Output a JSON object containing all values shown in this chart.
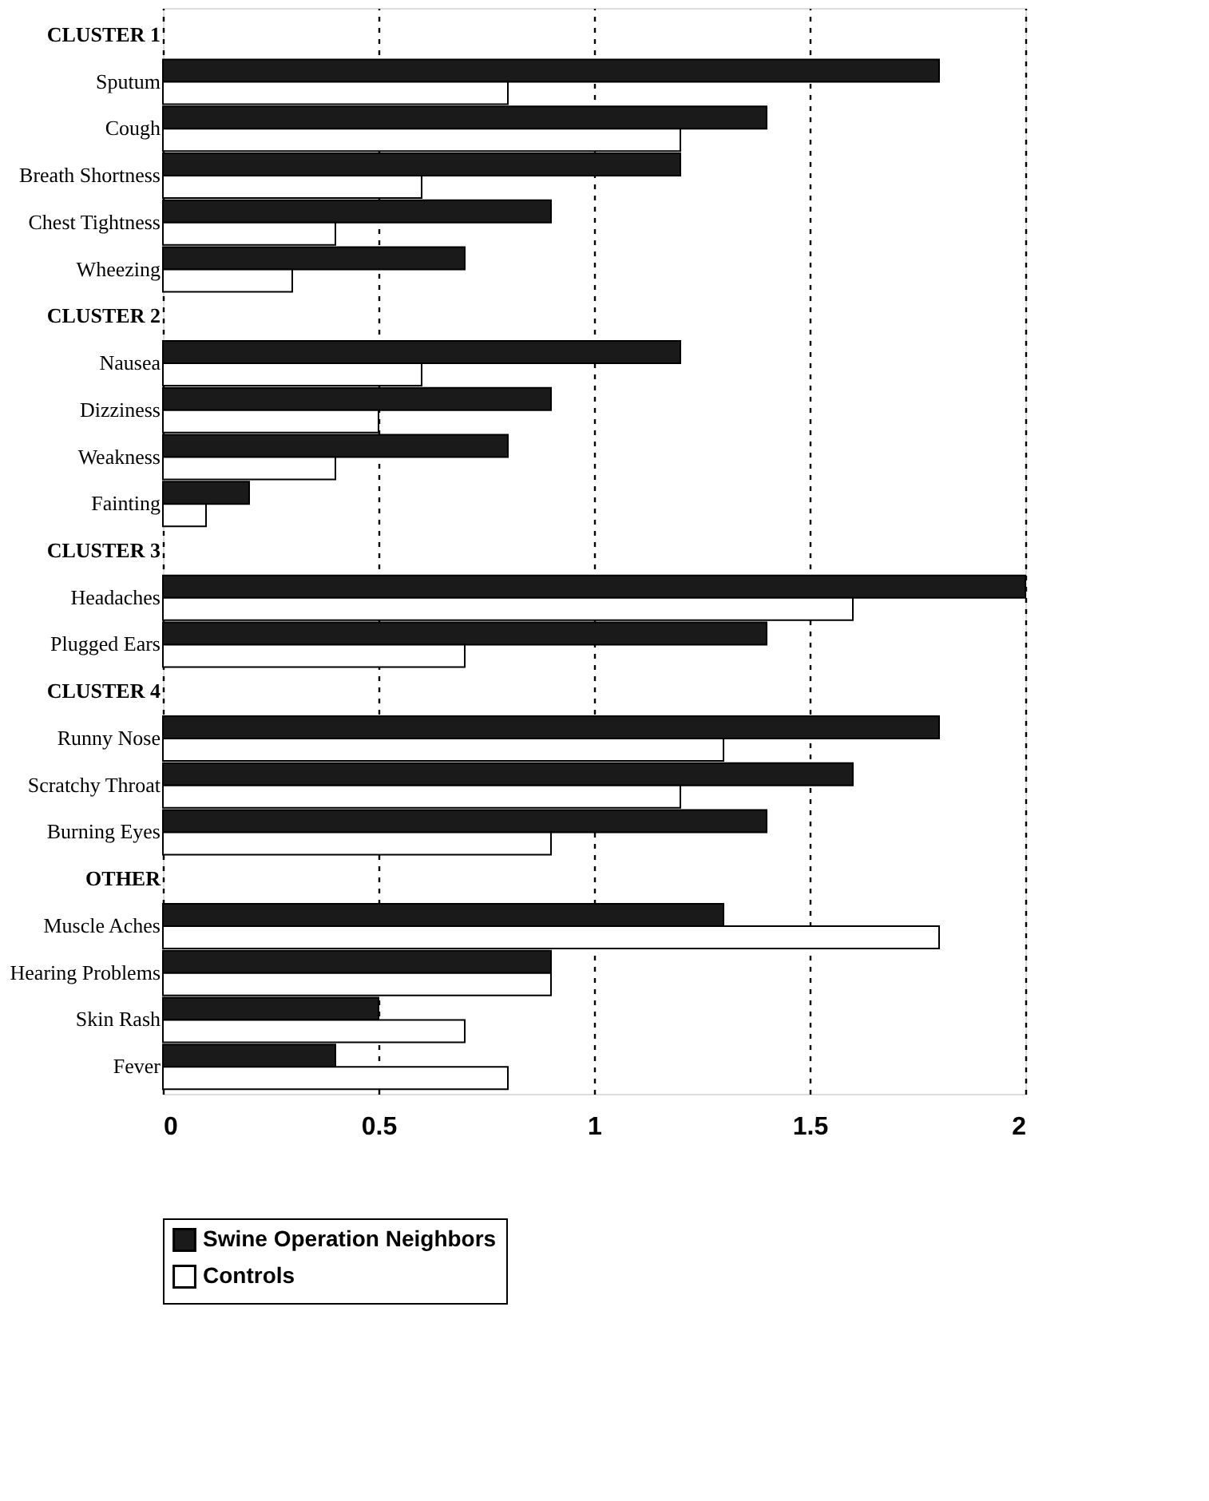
{
  "chart_data": {
    "type": "bar",
    "orientation": "horizontal",
    "categories": [
      "CLUSTER 1",
      "Sputum",
      "Cough",
      "Breath Shortness",
      "Chest Tightness",
      "Wheezing",
      "CLUSTER 2",
      "Nausea",
      "Dizziness",
      "Weakness",
      "Fainting",
      "CLUSTER 3",
      "Headaches",
      "Plugged Ears",
      "CLUSTER 4",
      "Runny Nose",
      "Scratchy Throat",
      "Burning Eyes",
      "OTHER",
      "Muscle Aches",
      "Hearing Problems",
      "Skin Rash",
      "Fever"
    ],
    "series": [
      {
        "name": "Swine Operation Neighbors",
        "color": "#1a1a1a",
        "values": [
          null,
          1.8,
          1.4,
          1.2,
          0.9,
          0.7,
          null,
          1.2,
          0.9,
          0.8,
          0.2,
          null,
          2.0,
          1.4,
          null,
          1.8,
          1.6,
          1.4,
          null,
          1.3,
          0.9,
          0.5,
          0.4
        ]
      },
      {
        "name": "Controls",
        "color": "#ffffff",
        "values": [
          null,
          0.8,
          1.2,
          0.6,
          0.4,
          0.3,
          null,
          0.6,
          0.5,
          0.4,
          0.1,
          null,
          1.6,
          0.7,
          null,
          1.3,
          1.2,
          0.9,
          null,
          1.8,
          0.9,
          0.7,
          0.8
        ]
      }
    ],
    "xlim": [
      0,
      2
    ],
    "xticks": [
      0,
      0.5,
      1,
      1.5,
      2
    ],
    "grid": "x",
    "legend": "bottom"
  }
}
